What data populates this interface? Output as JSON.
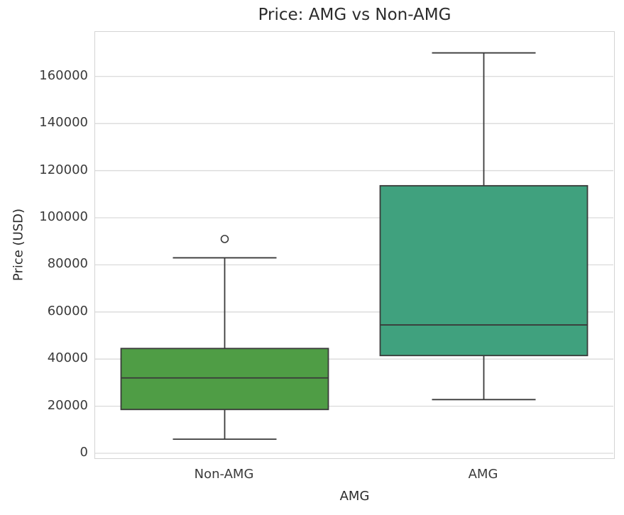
{
  "chart_data": {
    "type": "box",
    "title": "Price: AMG vs Non-AMG",
    "xlabel": "AMG",
    "ylabel": "Price (USD)",
    "categories": [
      "Non-AMG",
      "AMG"
    ],
    "y_ticks": [
      0,
      20000,
      40000,
      60000,
      80000,
      100000,
      120000,
      140000,
      160000
    ],
    "ylim": [
      -1800,
      178900
    ],
    "grid": "horizontal",
    "legend_position": "none",
    "series": [
      {
        "category": "Non-AMG",
        "whisker_low": 6000,
        "q1": 18600,
        "median": 32000,
        "q3": 44500,
        "whisker_high": 83000,
        "outliers": [
          91000
        ],
        "fill_color": "#4f9d45"
      },
      {
        "category": "AMG",
        "whisker_low": 22800,
        "q1": 41500,
        "median": 54500,
        "q3": 113600,
        "whisker_high": 170000,
        "outliers": [],
        "fill_color": "#40a17e"
      }
    ],
    "style": {
      "box_edge_color": "#3a3a3a",
      "grid_color": "#dadada",
      "spine_color": "#d4d4d4",
      "text_color": "#2b2b2b",
      "background_color": "#ffffff"
    }
  }
}
